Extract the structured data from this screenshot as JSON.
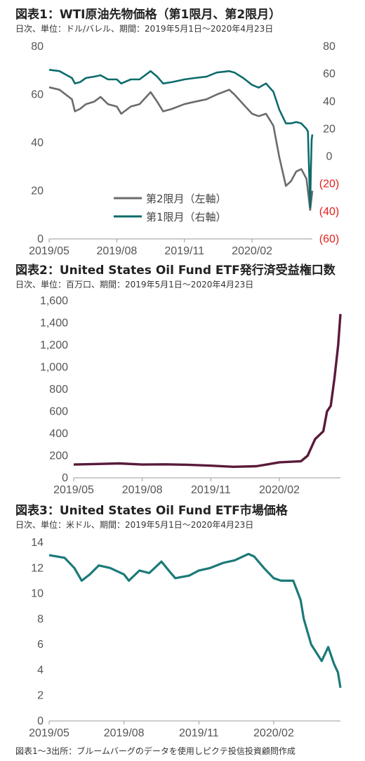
{
  "chart_data": [
    {
      "type": "line",
      "title": "図表1：WTI原油先物価格（第1限月、第2限月）",
      "subtitle": "日次、単位：ドル/バレル、期間：2019年5月1日～2020年4月23日",
      "x_tick_labels": [
        "2019/05",
        "2019/08",
        "2019/11",
        "2020/02"
      ],
      "y_left_range": [
        0,
        80
      ],
      "y_left_ticks": [
        "0",
        "20",
        "40",
        "60",
        "80"
      ],
      "y_right_range": [
        -60,
        80
      ],
      "y_right_ticks": [
        "(60)",
        "(40)",
        "(20)",
        "0",
        "20",
        "40",
        "60",
        "80"
      ],
      "legend_position": "center-left",
      "colors": {
        "series_2nd": "#6b6b6b",
        "series_1st": "#0d6b6b",
        "negative_ticks": "#e02020"
      },
      "series": [
        {
          "name": "第2限月（左軸）",
          "axis": "left",
          "x": [
            "2019-05-01",
            "2019-05-15",
            "2019-06-01",
            "2019-06-05",
            "2019-06-12",
            "2019-06-20",
            "2019-07-01",
            "2019-07-10",
            "2019-07-20",
            "2019-08-01",
            "2019-08-07",
            "2019-08-20",
            "2019-09-01",
            "2019-09-16",
            "2019-09-25",
            "2019-10-03",
            "2019-10-15",
            "2019-11-01",
            "2019-11-15",
            "2019-12-01",
            "2019-12-15",
            "2020-01-01",
            "2020-01-08",
            "2020-01-20",
            "2020-02-01",
            "2020-02-10",
            "2020-02-20",
            "2020-03-01",
            "2020-03-09",
            "2020-03-18",
            "2020-03-25",
            "2020-04-01",
            "2020-04-08",
            "2020-04-15",
            "2020-04-20",
            "2020-04-23"
          ],
          "y": [
            63,
            62,
            58,
            53,
            54,
            56,
            57,
            59,
            56,
            55,
            52,
            55,
            56,
            61,
            57,
            53,
            54,
            56,
            57,
            58,
            60,
            62,
            60,
            56,
            52,
            51,
            52,
            47,
            34,
            22,
            24,
            28,
            29,
            25,
            12,
            20
          ]
        },
        {
          "name": "第1限月（右軸）",
          "axis": "right",
          "x": [
            "2019-05-01",
            "2019-05-15",
            "2019-06-01",
            "2019-06-05",
            "2019-06-12",
            "2019-06-20",
            "2019-07-01",
            "2019-07-10",
            "2019-07-20",
            "2019-08-01",
            "2019-08-07",
            "2019-08-20",
            "2019-09-01",
            "2019-09-16",
            "2019-09-25",
            "2019-10-03",
            "2019-10-15",
            "2019-11-01",
            "2019-11-15",
            "2019-12-01",
            "2019-12-15",
            "2020-01-01",
            "2020-01-08",
            "2020-01-20",
            "2020-02-01",
            "2020-02-10",
            "2020-02-20",
            "2020-03-01",
            "2020-03-09",
            "2020-03-18",
            "2020-03-25",
            "2020-04-01",
            "2020-04-08",
            "2020-04-15",
            "2020-04-17",
            "2020-04-20",
            "2020-04-21",
            "2020-04-22",
            "2020-04-23"
          ],
          "y": [
            63,
            62,
            57,
            53,
            54,
            57,
            58,
            59,
            56,
            56,
            53,
            56,
            56,
            62,
            58,
            53,
            54,
            56,
            57,
            58,
            61,
            62,
            61,
            57,
            52,
            50,
            53,
            47,
            34,
            24,
            24,
            25,
            24,
            20,
            18,
            -37,
            -10,
            12,
            16
          ]
        }
      ]
    },
    {
      "type": "line",
      "title": "図表2：United States Oil Fund ETF発行済受益権口数",
      "subtitle": "日次、単位：百万口、期間：2019年5月1日～2020年4月23日",
      "x_tick_labels": [
        "2019/05",
        "2019/08",
        "2019/11",
        "2020/02"
      ],
      "y_range": [
        0,
        1600
      ],
      "y_ticks": [
        "0",
        "200",
        "400",
        "600",
        "800",
        "1,000",
        "1,200",
        "1,400",
        "1,600"
      ],
      "colors": {
        "line": "#5a1a3a"
      },
      "series": [
        {
          "x": [
            "2019-05-01",
            "2019-06-01",
            "2019-07-01",
            "2019-08-01",
            "2019-09-01",
            "2019-10-01",
            "2019-11-01",
            "2019-12-01",
            "2020-01-01",
            "2020-01-15",
            "2020-02-01",
            "2020-02-15",
            "2020-03-01",
            "2020-03-10",
            "2020-03-20",
            "2020-03-31",
            "2020-04-05",
            "2020-04-10",
            "2020-04-15",
            "2020-04-20",
            "2020-04-23"
          ],
          "y": [
            120,
            125,
            130,
            120,
            122,
            118,
            110,
            100,
            105,
            120,
            140,
            145,
            150,
            200,
            350,
            420,
            600,
            650,
            900,
            1200,
            1480
          ]
        }
      ]
    },
    {
      "type": "line",
      "title": "図表3：United States Oil Fund ETF市場価格",
      "subtitle": "日次、単位：米ドル、期間：2019年5月1日～2020年4月23日",
      "x_tick_labels": [
        "2019/05",
        "2019/08",
        "2019/11",
        "2020/02"
      ],
      "y_range": [
        0,
        14
      ],
      "y_ticks": [
        "0",
        "2",
        "4",
        "6",
        "8",
        "10",
        "12",
        "14"
      ],
      "colors": {
        "line": "#1a7a78"
      },
      "series": [
        {
          "x": [
            "2019-05-01",
            "2019-05-20",
            "2019-06-01",
            "2019-06-10",
            "2019-06-20",
            "2019-07-01",
            "2019-07-15",
            "2019-08-01",
            "2019-08-07",
            "2019-08-20",
            "2019-09-01",
            "2019-09-16",
            "2019-09-25",
            "2019-10-03",
            "2019-10-20",
            "2019-11-01",
            "2019-11-15",
            "2019-12-01",
            "2019-12-15",
            "2020-01-01",
            "2020-01-08",
            "2020-01-20",
            "2020-02-01",
            "2020-02-10",
            "2020-02-25",
            "2020-03-05",
            "2020-03-09",
            "2020-03-18",
            "2020-03-31",
            "2020-04-08",
            "2020-04-15",
            "2020-04-20",
            "2020-04-23"
          ],
          "y": [
            13.0,
            12.8,
            12.0,
            11.0,
            11.5,
            12.2,
            12.0,
            11.5,
            11.0,
            11.8,
            11.6,
            12.5,
            11.8,
            11.2,
            11.4,
            11.8,
            12.0,
            12.4,
            12.6,
            13.1,
            12.9,
            12.0,
            11.2,
            11.0,
            11.0,
            9.5,
            8.0,
            6.0,
            4.7,
            5.8,
            4.5,
            3.8,
            2.6
          ]
        }
      ]
    }
  ],
  "source": "図表1～3出所：ブルームバーグのデータを使用しピクテ投信投資顧問作成"
}
